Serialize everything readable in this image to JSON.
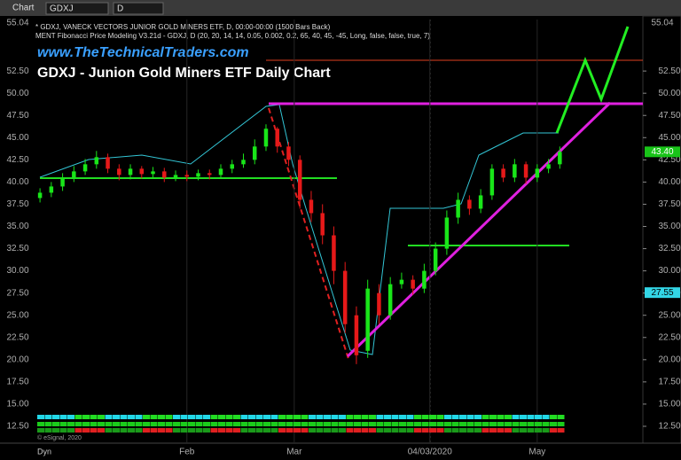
{
  "header": {
    "window": "Chart",
    "symbol": "GDXJ",
    "interval": "D"
  },
  "chart_data": {
    "type": "candlestick",
    "study_line": "* GDXJ, VANECK VECTORS JUNIOR GOLD MINERS ETF, D, 00:00-00:00 (1500 Bars Back)",
    "study_line2": "MENT Fibonacci Price Modeling V3.21d - GDXJ, D (20, 20, 14, 14, 0.05, 0.002, 0.2, 65, 40, 45, -45, Long, false, false, true, 7)",
    "website": "www.TheTechnicalTraders.com",
    "title": "GDXJ - Junion Gold Miners ETF Daily Chart",
    "copyright": "© eSignal, 2020",
    "footer_label": "Dyn",
    "x": [
      0,
      2,
      4,
      6,
      8,
      10,
      12,
      14,
      16,
      18,
      20,
      22,
      24,
      26,
      28,
      30,
      32,
      34,
      36,
      38,
      40,
      42,
      44,
      46,
      48,
      50,
      52,
      54,
      56,
      58,
      60,
      62,
      64,
      66,
      68,
      70,
      72,
      74,
      76,
      78,
      80,
      82,
      84,
      86,
      88,
      90,
      92
    ],
    "open": [
      38.2,
      38.8,
      39.5,
      40.5,
      41.2,
      42.0,
      42.8,
      41.5,
      40.8,
      41.5,
      40.9,
      41.2,
      40.5,
      40.8,
      40.6,
      41.0,
      40.8,
      41.5,
      42.0,
      42.5,
      44.0,
      46.0,
      44.0,
      42.5,
      38.0,
      36.5,
      34.0,
      30.0,
      25.0,
      21.0,
      27.5,
      25.0,
      28.5,
      29.0,
      28.0,
      30.0,
      32.5,
      36.0,
      38.0,
      37.0,
      38.5,
      41.5,
      40.5,
      42.0,
      40.5,
      41.5,
      42.0
    ],
    "high": [
      39.3,
      40.0,
      41.0,
      41.8,
      42.6,
      43.5,
      43.2,
      42.0,
      42.0,
      41.8,
      41.7,
      41.6,
      41.3,
      41.3,
      41.4,
      41.4,
      42.0,
      42.5,
      43.2,
      44.8,
      46.5,
      46.2,
      44.5,
      43.0,
      39.0,
      37.5,
      35.0,
      31.0,
      26.0,
      29.0,
      28.5,
      29.3,
      29.8,
      29.5,
      30.8,
      33.2,
      36.8,
      38.8,
      38.5,
      39.2,
      42.0,
      42.0,
      42.6,
      42.3,
      42.0,
      42.6,
      44.0
    ],
    "low": [
      37.7,
      38.3,
      39.0,
      40.0,
      40.8,
      41.5,
      41.0,
      40.2,
      40.3,
      40.4,
      40.4,
      40.0,
      40.1,
      40.1,
      40.2,
      40.3,
      40.4,
      41.0,
      41.6,
      42.0,
      43.5,
      43.3,
      41.8,
      37.0,
      35.5,
      33.0,
      28.5,
      23.0,
      19.5,
      20.2,
      24.0,
      24.5,
      28.0,
      27.3,
      27.5,
      29.5,
      31.8,
      35.3,
      36.3,
      36.5,
      38.0,
      40.0,
      40.0,
      39.8,
      40.0,
      41.0,
      41.5
    ],
    "close": [
      38.8,
      39.5,
      40.5,
      41.2,
      42.0,
      42.8,
      41.5,
      40.8,
      41.5,
      40.9,
      41.2,
      40.5,
      40.8,
      40.6,
      41.0,
      40.8,
      41.5,
      42.0,
      42.5,
      44.0,
      46.0,
      44.0,
      42.5,
      38.0,
      36.5,
      34.0,
      30.0,
      24.0,
      20.5,
      28.0,
      25.0,
      28.5,
      29.0,
      28.0,
      30.0,
      32.5,
      36.0,
      38.0,
      37.0,
      38.5,
      41.5,
      40.5,
      42.0,
      40.5,
      41.5,
      42.0,
      43.4
    ],
    "up_color": "#19e619",
    "down_color": "#e61919",
    "xlim": [
      -0.8,
      106.7
    ],
    "xticks": [
      {
        "value": 26,
        "label": "Feb"
      },
      {
        "value": 45,
        "label": "Mar"
      },
      {
        "value": 69,
        "label": "04/03/2020"
      },
      {
        "value": 88,
        "label": "May"
      }
    ],
    "ylim": [
      11.4,
      58.3
    ],
    "yticks": [
      {
        "value": 12.5,
        "label": "12.50"
      },
      {
        "value": 15,
        "label": "15.00"
      },
      {
        "value": 17.5,
        "label": "17.50"
      },
      {
        "value": 20,
        "label": "20.00"
      },
      {
        "value": 22.5,
        "label": "22.50"
      },
      {
        "value": 25,
        "label": "25.00"
      },
      {
        "value": 27.5,
        "label": "27.50"
      },
      {
        "value": 30,
        "label": "30.00"
      },
      {
        "value": 32.5,
        "label": "32.50"
      },
      {
        "value": 35,
        "label": "35.00"
      },
      {
        "value": 37.5,
        "label": "37.50"
      },
      {
        "value": 40,
        "label": "40.00"
      },
      {
        "value": 42.5,
        "label": "42.50"
      },
      {
        "value": 45,
        "label": "45.00"
      },
      {
        "value": 47.5,
        "label": "47.50"
      },
      {
        "value": 50,
        "label": "50.00"
      },
      {
        "value": 52.5,
        "label": "52.50"
      }
    ],
    "last_price": {
      "value": 43.4,
      "label": "43.40"
    },
    "level_price": {
      "value": 27.55,
      "label": "27.55"
    },
    "top_price": {
      "value": 55.04,
      "label": "55.04"
    }
  }
}
